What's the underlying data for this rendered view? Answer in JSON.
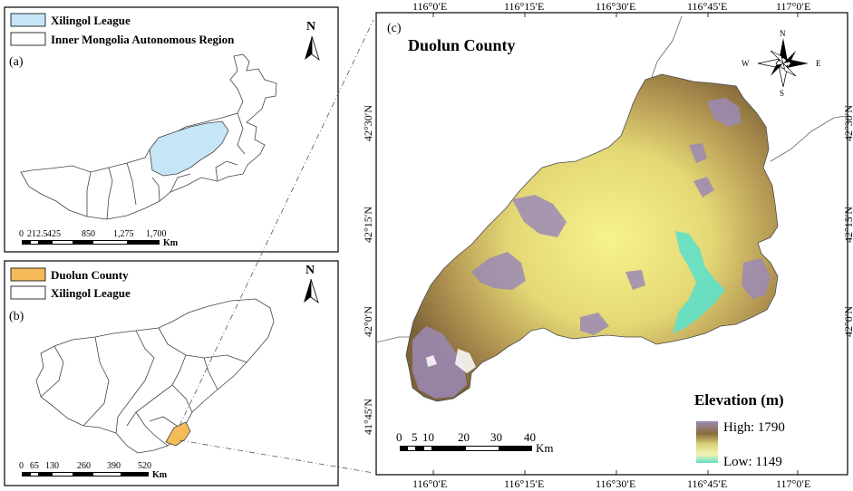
{
  "panel_a": {
    "tag": "(a)",
    "legend": [
      {
        "label": "Xilingol League",
        "swatch": "#c6e5f7"
      },
      {
        "label": "Inner Mongolia Autonomous Region",
        "swatch": "#ffffff"
      }
    ],
    "north": "N",
    "scale_ticks": [
      "0",
      "212.5",
      "425",
      "850",
      "1,275",
      "1,700"
    ],
    "scale_unit": "Km"
  },
  "panel_b": {
    "tag": "(b)",
    "legend": [
      {
        "label": "Duolun County",
        "swatch": "#f4bb58"
      },
      {
        "label": "Xilingol League",
        "swatch": "#ffffff"
      }
    ],
    "north": "N",
    "scale_ticks": [
      "0",
      "65",
      "130",
      "260",
      "390",
      "520"
    ],
    "scale_unit": "Km"
  },
  "panel_c": {
    "tag": "(c)",
    "title": "Duolun County",
    "lon_ticks": [
      "116°0′E",
      "116°15′E",
      "116°30′E",
      "116°45′E",
      "117°0′E"
    ],
    "lat_ticks": [
      "42°30′N",
      "42°15′N",
      "42°0′N",
      "41°45′N"
    ],
    "compass": {
      "n": "N",
      "s": "S",
      "e": "E",
      "w": "W"
    },
    "scale_ticks": [
      "0",
      "5",
      "10",
      "20",
      "30",
      "40"
    ],
    "scale_unit": "Km",
    "legend": {
      "title": "Elevation (m)",
      "high_label": "High: 1790",
      "low_label": "Low: 1149",
      "high": 1790,
      "low": 1149,
      "gradient": [
        "#9b8ab6",
        "#8a6b3a",
        "#d9d27a",
        "#f4f3b0",
        "#5ee0c8"
      ]
    }
  }
}
